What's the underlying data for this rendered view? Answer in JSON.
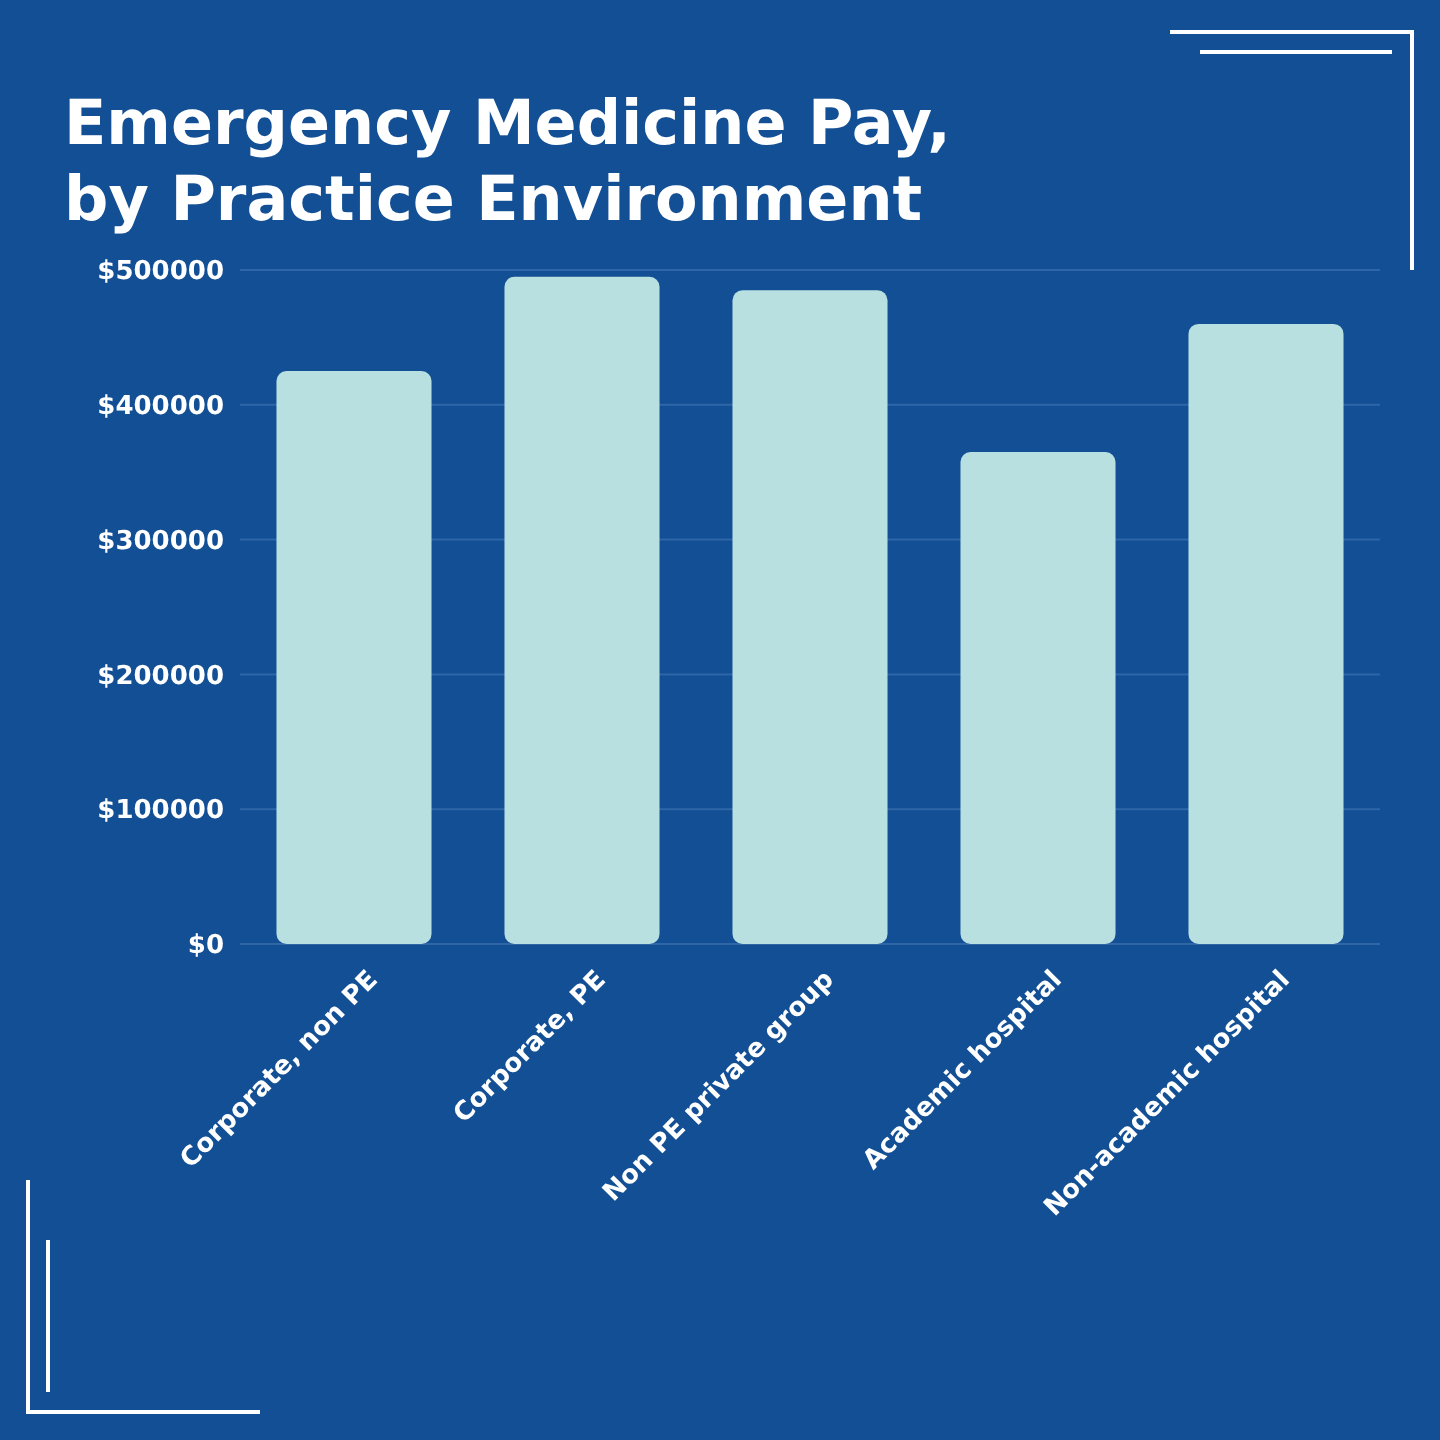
{
  "chart_data": {
    "type": "bar",
    "title": "Emergency Medicine Pay,\nby Practice Environment",
    "categories": [
      "Corporate, non PE",
      "Corporate, PE",
      "Non PE private group",
      "Academic hospital",
      "Non-academic hospital"
    ],
    "values": [
      425000,
      495000,
      485000,
      365000,
      460000
    ],
    "color": "#b9e0e0",
    "ylim": [
      0,
      500000
    ],
    "yticks": [
      {
        "value": 0,
        "label": "$0"
      },
      {
        "value": 100000,
        "label": "$100000"
      },
      {
        "value": 200000,
        "label": "$200000"
      },
      {
        "value": 300000,
        "label": "$300000"
      },
      {
        "value": 400000,
        "label": "$400000"
      },
      {
        "value": 500000,
        "label": "$500000"
      }
    ],
    "grid": "y"
  }
}
